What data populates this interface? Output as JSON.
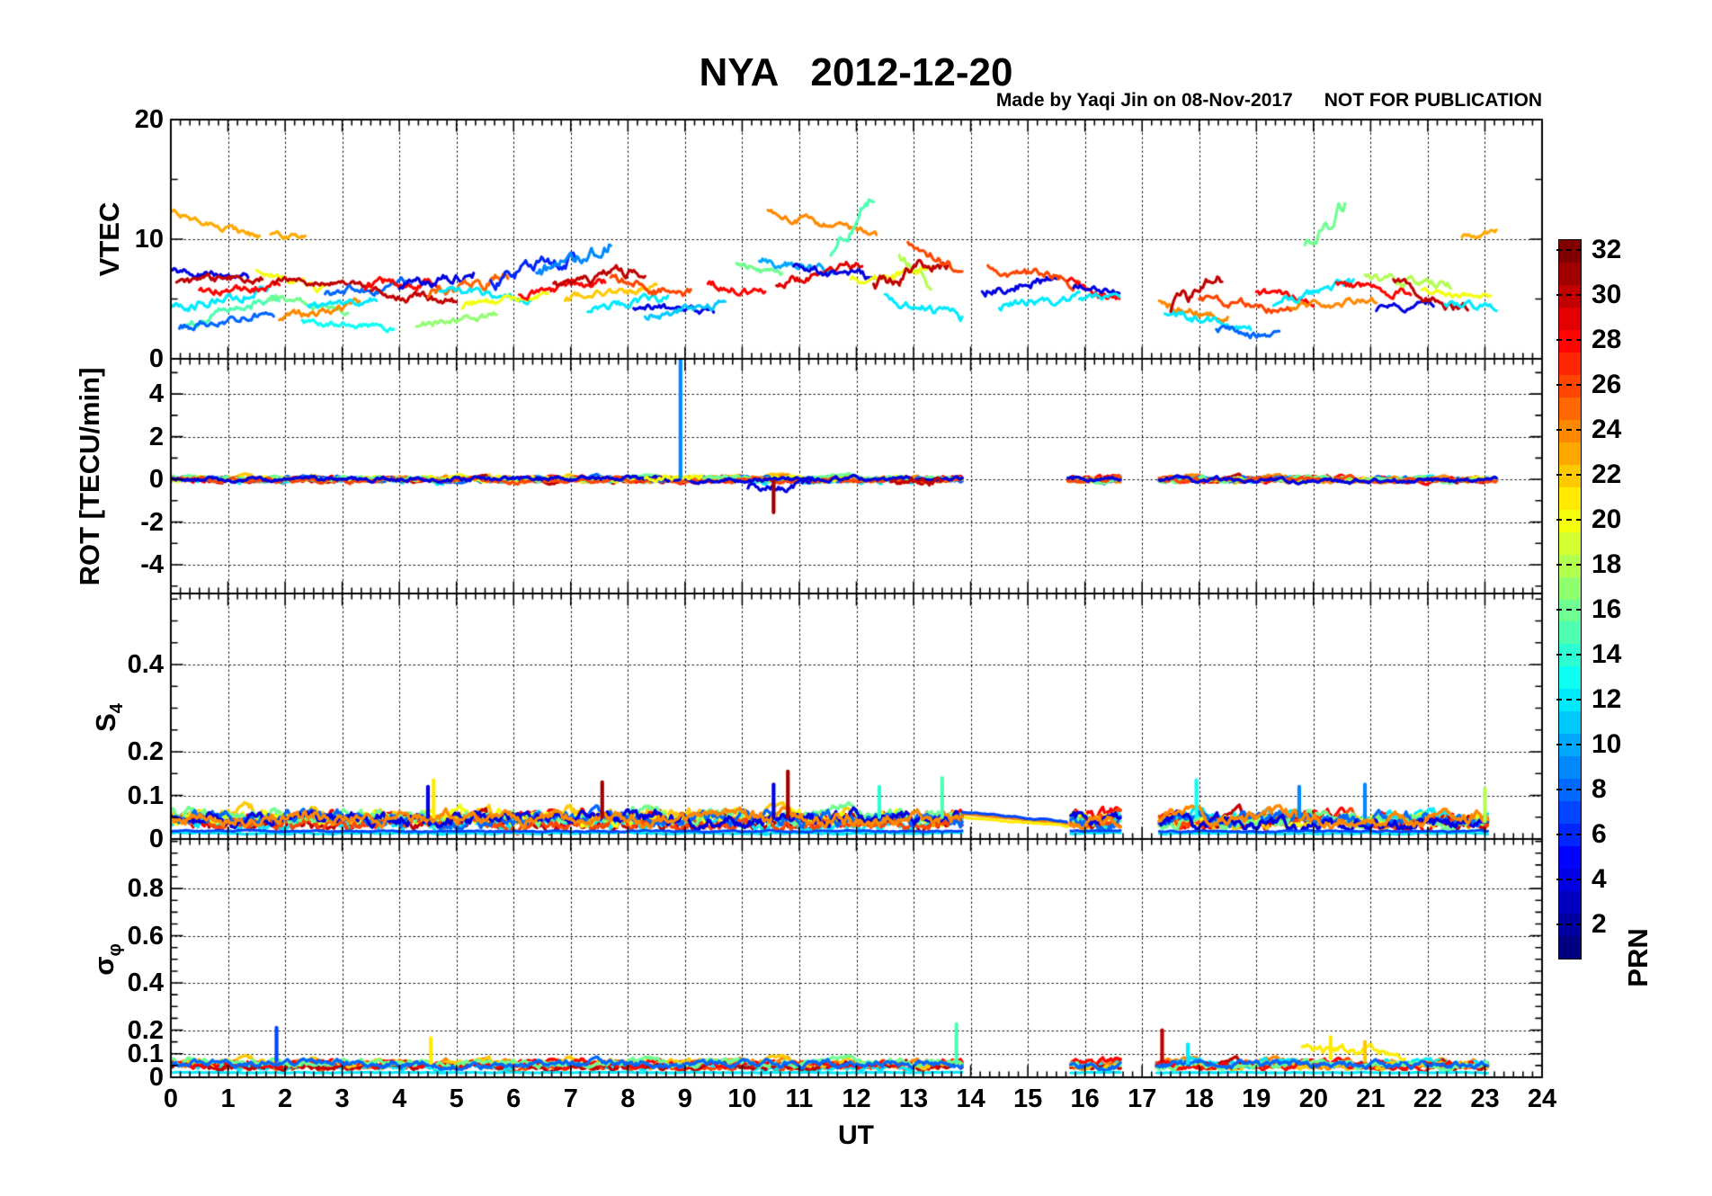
{
  "title": {
    "text": "NYA   2012-12-20",
    "color": "#FF0000"
  },
  "credit": {
    "text": "Made by Yaqi Jin on 08-Nov-2017      NOT FOR PUBLICATION",
    "color": "#0000FF"
  },
  "chart_data": {
    "type": "scatter",
    "station": "NYA",
    "date": "2012-12-20",
    "xaxis": {
      "label": "UT",
      "unit": "hours",
      "range": [
        0,
        24
      ],
      "tick_labels": [
        "0",
        "1",
        "2",
        "3",
        "4",
        "5",
        "6",
        "7",
        "8",
        "9",
        "10",
        "11",
        "12",
        "13",
        "14",
        "15",
        "16",
        "17",
        "18",
        "19",
        "20",
        "21",
        "22",
        "23",
        "24"
      ],
      "minor_tick_minutes": 10,
      "grid": "dotted vertical each hour"
    },
    "colorbar": {
      "label": "PRN",
      "range": [
        1,
        32
      ],
      "tick_values": [
        2,
        4,
        6,
        8,
        10,
        12,
        14,
        16,
        18,
        20,
        22,
        24,
        26,
        28,
        30,
        32
      ],
      "colormap": "jet-32",
      "colors_hex": [
        "#000080",
        "#0000A0",
        "#0000C1",
        "#0000E2",
        "#0004FF",
        "#0025FF",
        "#0046FF",
        "#0067FF",
        "#0088FF",
        "#00A9FF",
        "#00C9FF",
        "#00EAFF",
        "#0CFFF3",
        "#2DFFD2",
        "#4EFFB1",
        "#6FFF90",
        "#90FF6F",
        "#B1FF4E",
        "#D2FF2D",
        "#F3FF0C",
        "#FFEA00",
        "#FFC900",
        "#FFA900",
        "#FF8800",
        "#FF6700",
        "#FF4600",
        "#FF2500",
        "#FF0400",
        "#E20000",
        "#C10000",
        "#A00000",
        "#800000"
      ]
    },
    "data_gaps_ut": [
      [
        13.85,
        15.7
      ],
      [
        16.62,
        17.3
      ]
    ],
    "panels": [
      {
        "name": "VTEC",
        "ylabel_main": "VTEC",
        "ylabel_sub": "",
        "ylim": [
          0,
          20
        ],
        "ytick_values": [
          0,
          10,
          20
        ],
        "ytick_labels": [
          "0",
          "10",
          "20"
        ],
        "grid_values": [
          10
        ],
        "yminor_step": 5,
        "arcs": [
          [
            23,
            0.0,
            1.55,
            12.3,
            10.1,
            0.4
          ],
          [
            23,
            1.75,
            2.35,
            10.4,
            10.1,
            0.35
          ],
          [
            4,
            0.0,
            1.35,
            7.4,
            6.9,
            0.45
          ],
          [
            30,
            0.1,
            1.6,
            6.2,
            6.9,
            0.5
          ],
          [
            12,
            0.0,
            1.7,
            4.0,
            6.0,
            0.55
          ],
          [
            15,
            0.25,
            1.9,
            3.0,
            5.2,
            0.5
          ],
          [
            8,
            0.15,
            1.8,
            2.7,
            3.8,
            0.45
          ],
          [
            28,
            0.5,
            1.9,
            5.6,
            6.2,
            0.5
          ],
          [
            20,
            1.5,
            2.7,
            7.2,
            5.8,
            0.45
          ],
          [
            30,
            1.8,
            3.5,
            6.6,
            6.1,
            0.4
          ],
          [
            16,
            1.7,
            3.1,
            5.1,
            4.2,
            0.45
          ],
          [
            24,
            1.9,
            3.3,
            3.1,
            4.8,
            0.5
          ],
          [
            13,
            2.3,
            3.9,
            3.1,
            2.6,
            0.4
          ],
          [
            8,
            2.7,
            4.2,
            5.4,
            6.3,
            0.5
          ],
          [
            12,
            2.4,
            3.6,
            4.3,
            5.0,
            0.45
          ],
          [
            28,
            3.4,
            4.7,
            6.1,
            6.4,
            0.6
          ],
          [
            30,
            3.5,
            5.0,
            5.7,
            4.7,
            0.5
          ],
          [
            4,
            4.0,
            5.3,
            6.1,
            7.1,
            0.6
          ],
          [
            17,
            4.3,
            5.7,
            2.9,
            3.6,
            0.45
          ],
          [
            25,
            4.5,
            5.9,
            5.4,
            7.1,
            0.7
          ],
          [
            12,
            4.7,
            6.3,
            5.9,
            5.1,
            0.5
          ],
          [
            20,
            5.1,
            6.6,
            4.4,
            5.6,
            0.5
          ],
          [
            6,
            5.6,
            7.1,
            6.4,
            8.8,
            0.8
          ],
          [
            9,
            6.4,
            7.7,
            7.2,
            9.8,
            0.9
          ],
          [
            28,
            6.1,
            7.6,
            5.4,
            6.4,
            0.5
          ],
          [
            30,
            6.7,
            8.3,
            6.3,
            7.4,
            0.6
          ],
          [
            22,
            6.9,
            8.5,
            5.1,
            6.1,
            0.5
          ],
          [
            12,
            7.3,
            8.7,
            4.1,
            5.1,
            0.5
          ],
          [
            26,
            7.7,
            9.1,
            6.6,
            5.4,
            0.6
          ],
          [
            4,
            8.1,
            9.5,
            4.4,
            3.9,
            0.45
          ],
          [
            11,
            8.3,
            9.7,
            3.6,
            4.6,
            0.5
          ],
          [
            28,
            9.4,
            10.4,
            6.2,
            5.6,
            0.5
          ],
          [
            16,
            9.9,
            10.7,
            8.1,
            6.9,
            0.5
          ],
          [
            24,
            10.45,
            12.35,
            12.4,
            10.1,
            0.45
          ],
          [
            10,
            10.3,
            11.6,
            8.4,
            7.1,
            0.55
          ],
          [
            29,
            10.6,
            12.1,
            6.4,
            7.6,
            0.65
          ],
          [
            4,
            10.9,
            12.3,
            7.7,
            6.6,
            0.5
          ],
          [
            15,
            11.55,
            12.3,
            9.0,
            13.6,
            0.8
          ],
          [
            18,
            12.75,
            13.3,
            8.7,
            6.0,
            0.7
          ],
          [
            20,
            11.9,
            13.3,
            6.4,
            7.4,
            0.55
          ],
          [
            30,
            12.3,
            13.6,
            6.1,
            8.3,
            0.8
          ],
          [
            12,
            12.5,
            13.85,
            5.4,
            3.6,
            0.6
          ],
          [
            26,
            12.9,
            13.85,
            9.4,
            7.2,
            0.7
          ],
          [
            4,
            14.2,
            15.5,
            5.6,
            6.8,
            0.6
          ],
          [
            26,
            14.3,
            15.9,
            7.8,
            6.3,
            0.6
          ],
          [
            12,
            14.5,
            15.9,
            4.4,
            5.3,
            0.5
          ],
          [
            28,
            15.7,
            16.6,
            6.4,
            4.9,
            0.6
          ],
          [
            4,
            15.8,
            16.6,
            6.1,
            5.7,
            0.4
          ],
          [
            12,
            15.9,
            16.6,
            4.9,
            5.2,
            0.4
          ],
          [
            24,
            17.3,
            18.5,
            4.6,
            3.4,
            0.5
          ],
          [
            12,
            17.4,
            18.9,
            3.9,
            2.4,
            0.5
          ],
          [
            30,
            17.5,
            18.4,
            4.2,
            6.7,
            0.8
          ],
          [
            8,
            18.3,
            19.4,
            2.6,
            1.8,
            0.45
          ],
          [
            26,
            18.0,
            19.6,
            5.1,
            4.0,
            0.5
          ],
          [
            28,
            19.0,
            20.0,
            5.7,
            5.0,
            0.5
          ],
          [
            16,
            19.85,
            20.55,
            9.4,
            13.1,
            0.9
          ],
          [
            12,
            19.3,
            20.7,
            4.6,
            6.4,
            0.5
          ],
          [
            24,
            19.6,
            21.1,
            4.1,
            5.0,
            0.5
          ],
          [
            28,
            20.4,
            21.7,
            6.2,
            5.4,
            0.5
          ],
          [
            18,
            20.9,
            22.4,
            6.9,
            6.0,
            0.5
          ],
          [
            4,
            21.1,
            22.1,
            4.1,
            4.6,
            0.4
          ],
          [
            30,
            21.4,
            22.7,
            6.4,
            4.1,
            0.6
          ],
          [
            23,
            22.6,
            23.2,
            10.2,
            10.8,
            0.4
          ],
          [
            12,
            22.3,
            23.2,
            4.7,
            4.2,
            0.4
          ],
          [
            20,
            21.9,
            23.1,
            5.6,
            5.0,
            0.4
          ]
        ],
        "spikes": [],
        "floors": []
      },
      {
        "name": "ROT",
        "ylabel_main": "ROT [TECU/min]",
        "ylabel_sub": "",
        "ylim": [
          -5.35,
          5.65
        ],
        "ytick_values": [
          -4,
          -2,
          0,
          2,
          4
        ],
        "ytick_labels": [
          "-4",
          "-2",
          "0",
          "2",
          "4"
        ],
        "grid_values": [
          -4,
          -2,
          0,
          2,
          4
        ],
        "yminor_step": 1,
        "band": {
          "segments": [
            [
              0,
              13.85
            ],
            [
              15.7,
              16.62
            ],
            [
              17.3,
              23.2
            ]
          ],
          "prns": [
            22,
            30,
            12,
            24,
            28,
            8,
            20,
            16,
            26,
            4
          ],
          "base": 0,
          "amp": 0.15,
          "spread": 0.06
        },
        "arcs": [
          [
            4,
            10.1,
            11.2,
            -0.3,
            -0.15,
            0.3
          ],
          [
            30,
            12.6,
            13.5,
            -0.2,
            -0.1,
            0.25
          ],
          [
            20,
            8.3,
            9.3,
            0.15,
            0.1,
            0.2
          ]
        ],
        "spikes": [
          [
            9,
            8.92,
            0.1,
            5.9
          ],
          [
            31,
            10.55,
            -0.1,
            -1.55
          ]
        ],
        "floors": []
      },
      {
        "name": "S4",
        "ylabel_main": "S",
        "ylabel_sub": "4",
        "ylim": [
          0,
          0.563
        ],
        "ytick_values": [
          0,
          0.1,
          0.2,
          0.4
        ],
        "ytick_labels": [
          "0",
          "0.1",
          "0.2",
          "0.4"
        ],
        "grid_values": [
          0.1,
          0.2,
          0.4
        ],
        "yminor_step": 0.05,
        "band": {
          "segments": [
            [
              0,
              13.85
            ],
            [
              15.75,
              16.62
            ],
            [
              17.3,
              23.05
            ]
          ],
          "prns": [
            28,
            22,
            30,
            12,
            20,
            26,
            16,
            8,
            4,
            24
          ],
          "base": 0.045,
          "amp": 0.02,
          "spread": 0.012
        },
        "arcs": [
          [
            24,
            13.85,
            15.7,
            0.058,
            0.035,
            0
          ],
          [
            21,
            13.9,
            15.7,
            0.05,
            0.03,
            0.003
          ],
          [
            7,
            13.85,
            15.68,
            0.062,
            0.04,
            0.002
          ]
        ],
        "spikes": [
          [
            21,
            4.6,
            0.05,
            0.135
          ],
          [
            4,
            4.5,
            0.05,
            0.12
          ],
          [
            31,
            7.55,
            0.05,
            0.13
          ],
          [
            31,
            10.8,
            0.05,
            0.155
          ],
          [
            4,
            10.55,
            0.05,
            0.125
          ],
          [
            14,
            12.4,
            0.05,
            0.12
          ],
          [
            15,
            13.5,
            0.05,
            0.14
          ],
          [
            13,
            17.95,
            0.05,
            0.135
          ],
          [
            9,
            19.75,
            0.05,
            0.12
          ],
          [
            9,
            20.9,
            0.05,
            0.125
          ],
          [
            18,
            23.0,
            0.04,
            0.115
          ]
        ],
        "floors": [
          [
            12,
            0.013
          ],
          [
            7,
            0.018
          ]
        ]
      },
      {
        "name": "sigma_phi",
        "ylabel_main": "σ",
        "ylabel_sub": "φ",
        "ylim": [
          0,
          1.01
        ],
        "ytick_values": [
          0,
          0.1,
          0.2,
          0.4,
          0.6,
          0.8
        ],
        "ytick_labels": [
          "0",
          "0.1",
          "0.2",
          "0.4",
          "0.6",
          "0.8"
        ],
        "grid_values": [
          0.1,
          0.2,
          0.4,
          0.6,
          0.8
        ],
        "yminor_step": 0.05,
        "band": {
          "segments": [
            [
              0,
              13.85
            ],
            [
              15.75,
              16.62
            ],
            [
              17.25,
              23.05
            ]
          ],
          "prns": [
            24,
            26,
            12,
            30,
            22,
            28,
            16,
            8
          ],
          "base": 0.055,
          "amp": 0.02,
          "spread": 0.012
        },
        "arcs": [
          [
            21,
            19.8,
            21.6,
            0.12,
            0.1,
            0.03
          ]
        ],
        "spikes": [
          [
            7,
            1.85,
            0.07,
            0.21
          ],
          [
            21,
            4.55,
            0.06,
            0.165
          ],
          [
            15,
            13.75,
            0.06,
            0.225
          ],
          [
            30,
            17.35,
            0.07,
            0.2
          ],
          [
            21,
            20.3,
            0.08,
            0.17
          ],
          [
            22,
            20.9,
            0.07,
            0.15
          ],
          [
            12,
            17.8,
            0.06,
            0.14
          ]
        ],
        "floors": [
          [
            12,
            0.02
          ]
        ]
      }
    ]
  }
}
